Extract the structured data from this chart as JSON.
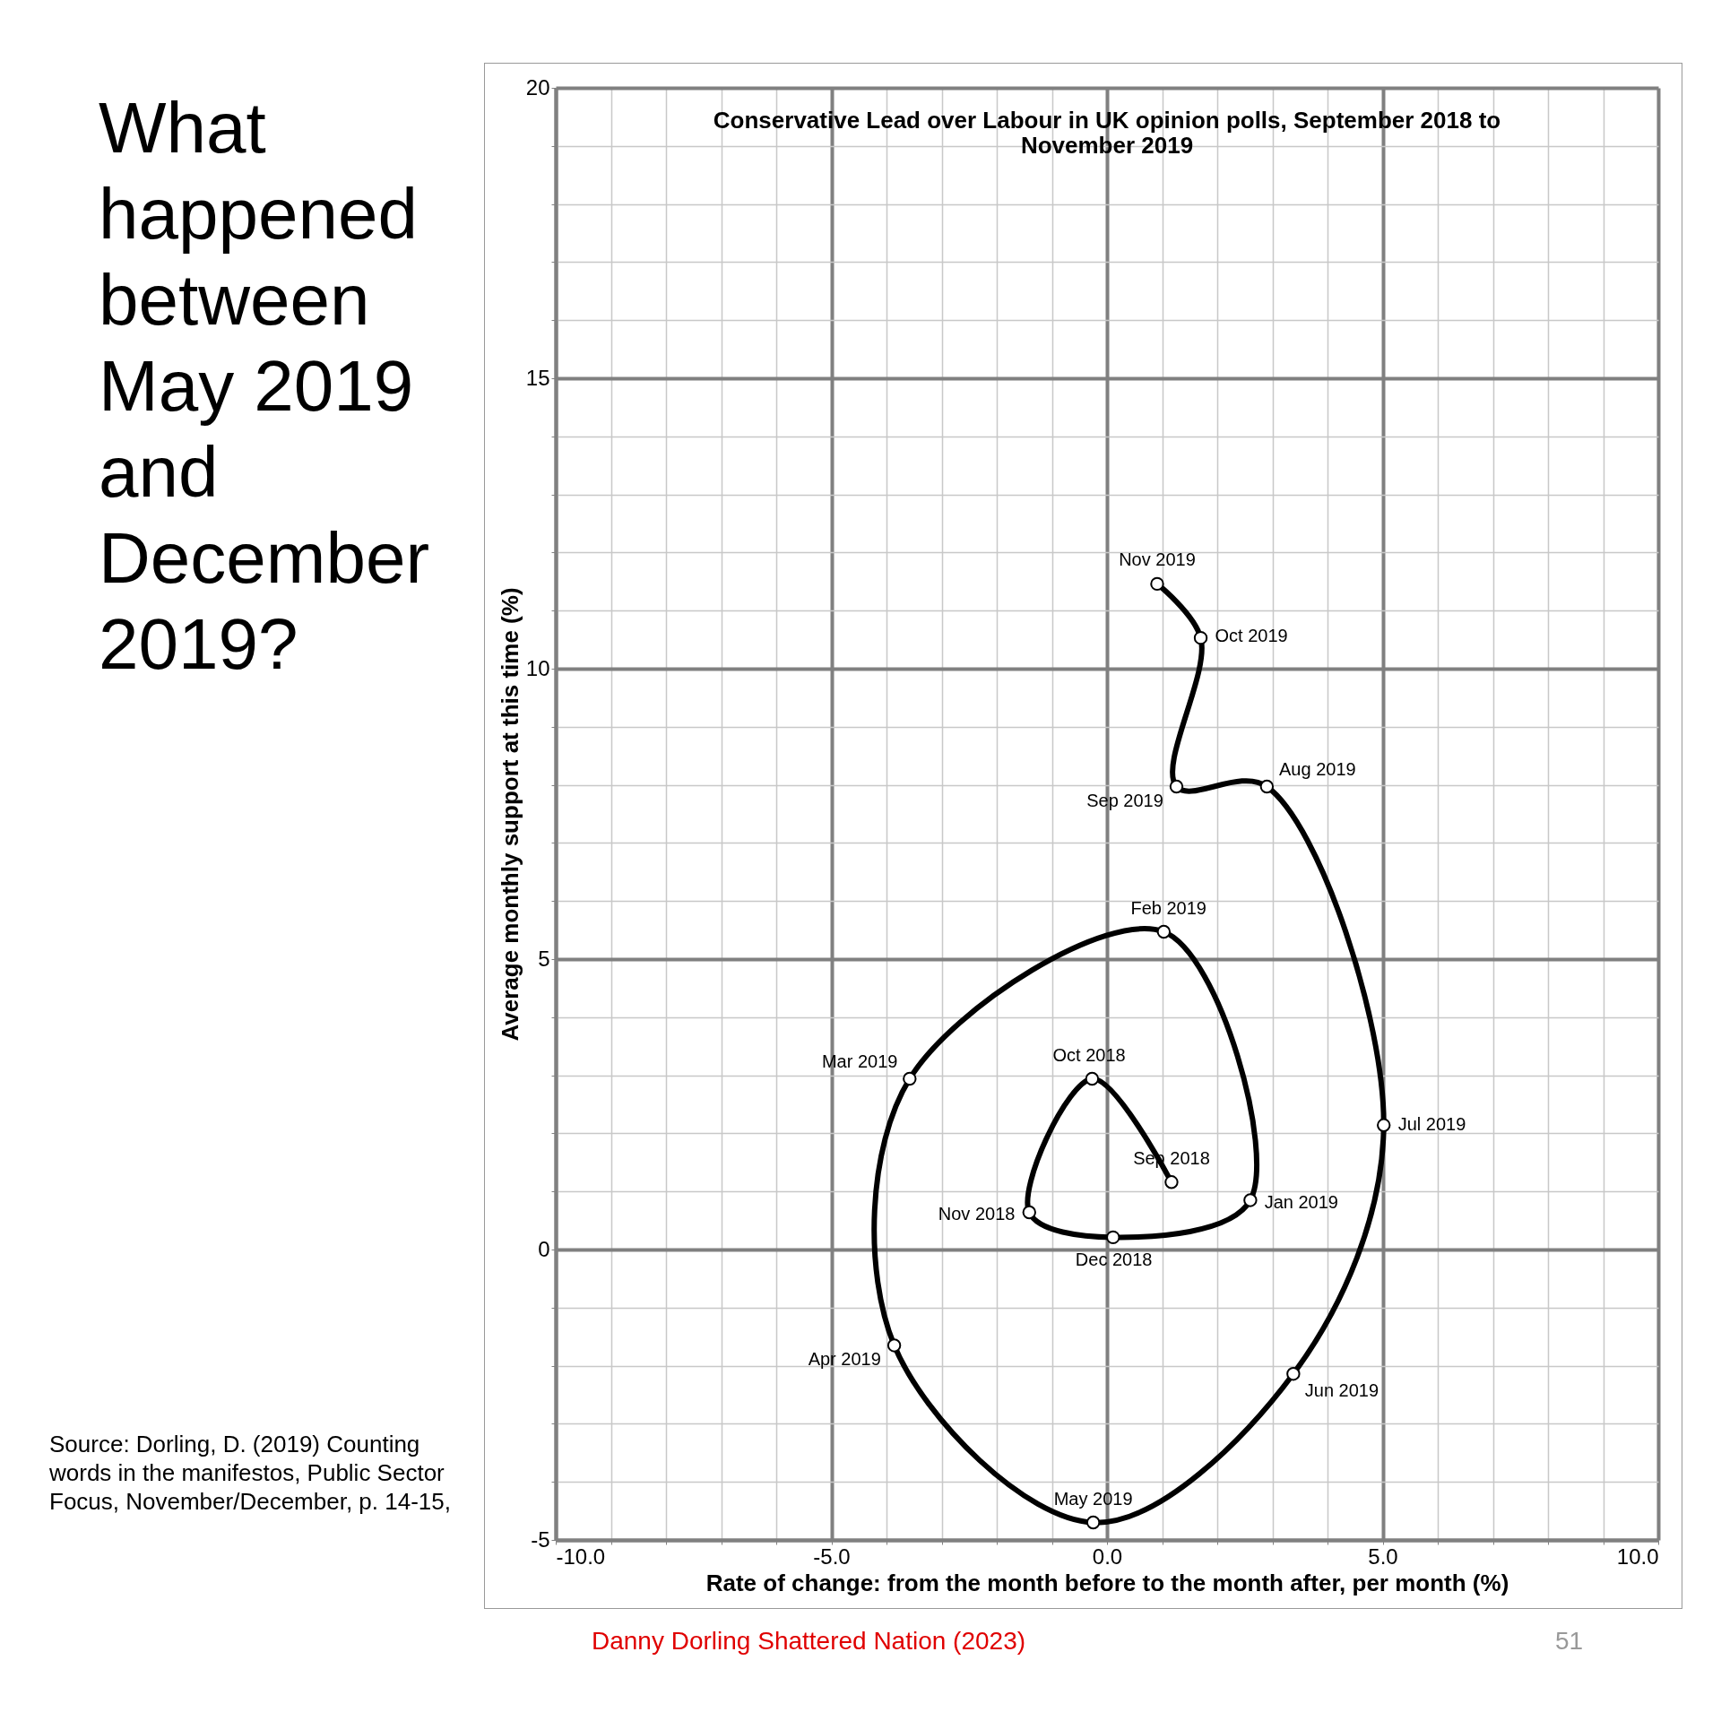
{
  "chart_data": {
    "type": "line",
    "title": "What happened between May 2019 and December 2019?",
    "subtitle": "Conservative Lead over Labour in UK opinion polls, September 2018 to November 2019",
    "xlabel": "Rate of change: from the month before to the month after, per month (%)",
    "ylabel": "Average monthly support at this time (%)",
    "series": [
      {
        "color": "#000000",
        "x": [
          1.17,
          -0.27,
          -1.41,
          0.11,
          2.6,
          1.03,
          -3.58,
          -3.86,
          -0.25,
          3.38,
          5.02,
          2.9,
          1.26,
          1.7,
          0.91
        ],
        "values": [
          1.16,
          2.94,
          0.64,
          0.21,
          0.85,
          5.47,
          2.94,
          -1.65,
          -4.7,
          -2.14,
          2.14,
          7.97,
          7.97,
          10.53,
          11.46
        ]
      }
    ],
    "xlim": [
      -10,
      10
    ],
    "xticks": [
      {
        "value": -10,
        "label": "-10.0"
      },
      {
        "value": -9,
        "label": null
      },
      {
        "value": -8,
        "label": null
      },
      {
        "value": -7,
        "label": null
      },
      {
        "value": -6,
        "label": null
      },
      {
        "value": -5,
        "label": "-5.0"
      },
      {
        "value": -4,
        "label": null
      },
      {
        "value": -3,
        "label": null
      },
      {
        "value": -2,
        "label": null
      },
      {
        "value": -1,
        "label": null
      },
      {
        "value": 0,
        "label": "0.0"
      },
      {
        "value": 1,
        "label": null
      },
      {
        "value": 2,
        "label": null
      },
      {
        "value": 3,
        "label": null
      },
      {
        "value": 4,
        "label": null
      },
      {
        "value": 5,
        "label": "5.0"
      },
      {
        "value": 6,
        "label": null
      },
      {
        "value": 7,
        "label": null
      },
      {
        "value": 8,
        "label": null
      },
      {
        "value": 9,
        "label": null
      },
      {
        "value": 10,
        "label": "10.0"
      }
    ],
    "ylim": [
      -5,
      20
    ],
    "yticks": [
      -5,
      {
        "value": -4,
        "label": null
      },
      {
        "value": -3,
        "label": null
      },
      {
        "value": -2,
        "label": null
      },
      {
        "value": -1,
        "label": null
      },
      0,
      {
        "value": 1,
        "label": null
      },
      {
        "value": 2,
        "label": null
      },
      {
        "value": 3,
        "label": null
      },
      {
        "value": 4,
        "label": null
      },
      5,
      {
        "value": 6,
        "label": null
      },
      {
        "value": 7,
        "label": null
      },
      {
        "value": 8,
        "label": null
      },
      {
        "value": 9,
        "label": null
      },
      10,
      {
        "value": 11,
        "label": null
      },
      {
        "value": 12,
        "label": null
      },
      {
        "value": 13,
        "label": null
      },
      {
        "value": 14,
        "label": null
      },
      15,
      {
        "value": 16,
        "label": null
      },
      {
        "value": 17,
        "label": null
      },
      {
        "value": 18,
        "label": null
      },
      {
        "value": 19,
        "label": null
      },
      20
    ],
    "grid": true,
    "marker": "circle",
    "line_style": "solid",
    "annotations": [
      {
        "text": "Sep 2018",
        "x": 1.17,
        "y": 1.16
      },
      {
        "text": "Oct 2018",
        "x": -0.27,
        "y": 2.94
      },
      {
        "text": "Nov 2018",
        "x": -1.41,
        "y": 0.64
      },
      {
        "text": "Dec 2018",
        "x": 0.11,
        "y": 0.21
      },
      {
        "text": "Jan 2019",
        "x": 2.6,
        "y": 0.85
      },
      {
        "text": "Feb 2019",
        "x": 1.03,
        "y": 5.47
      },
      {
        "text": "Mar 2019",
        "x": -3.58,
        "y": 2.94
      },
      {
        "text": "Apr 2019",
        "x": -3.86,
        "y": -1.65
      },
      {
        "text": "May 2019",
        "x": -0.25,
        "y": -4.7
      },
      {
        "text": "Jun 2019",
        "x": 3.38,
        "y": -2.14
      },
      {
        "text": "Jul 2019",
        "x": 5.02,
        "y": 2.14
      },
      {
        "text": "Aug 2019",
        "x": 2.9,
        "y": 7.97
      },
      {
        "text": "Sep 2019",
        "x": 1.26,
        "y": 7.97
      },
      {
        "text": "Oct 2019",
        "x": 1.7,
        "y": 10.53
      },
      {
        "text": "Nov 2019",
        "x": 0.91,
        "y": 11.46
      },
      "Source: Dorling, D. (2019) Counting words in the manifestos, Public Sector Focus, November/December, p. 14-15,",
      "Danny Dorling Shattered Nation (2023)",
      "51"
    ]
  }
}
